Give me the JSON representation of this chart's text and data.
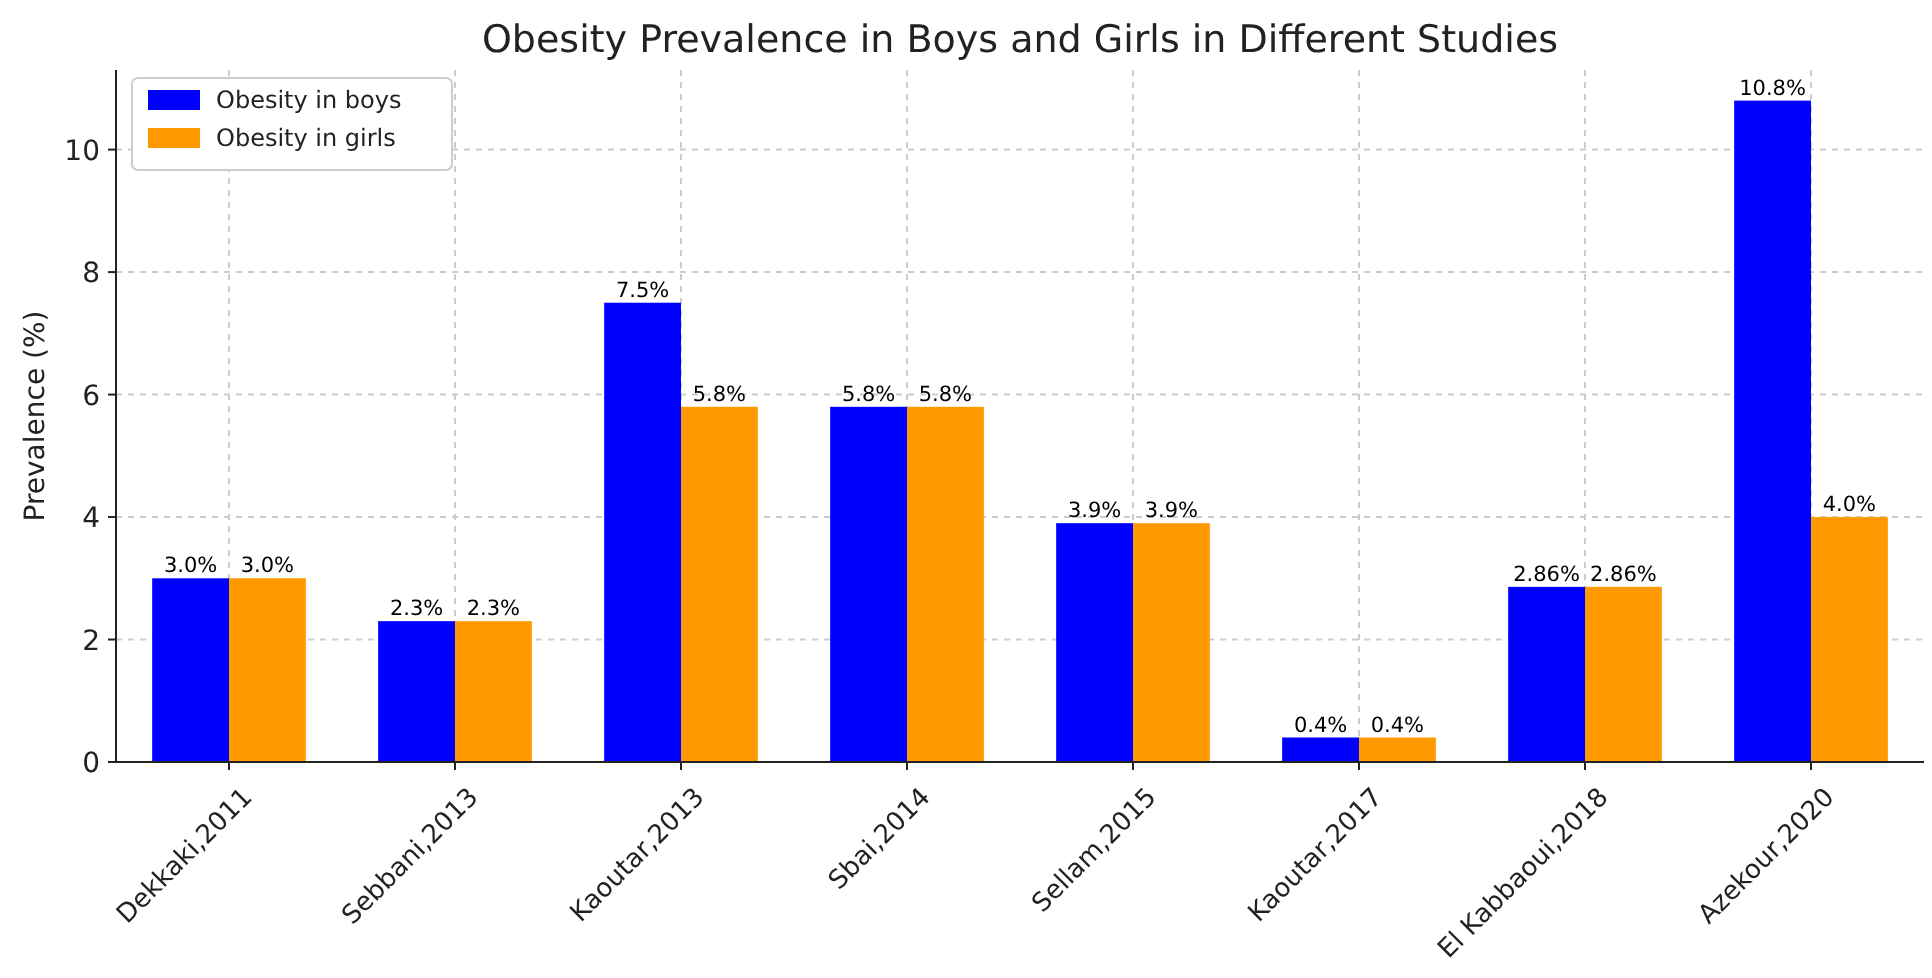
{
  "chart_data": {
    "type": "bar",
    "title": "Obesity Prevalence in Boys and Girls in Different Studies",
    "ylabel": "Prevalence (%)",
    "categories": [
      "Dekkaki,2011",
      "Sebbani,2013",
      "Kaoutar,2013",
      "Sbai,2014",
      "Sellam,2015",
      "Kaoutar,2017",
      "El Kabbaoui,2018",
      "Azekour,2020"
    ],
    "series": [
      {
        "name": "Obesity in boys",
        "color": "#0000ff",
        "values": [
          3.0,
          2.3,
          7.5,
          5.8,
          3.9,
          0.4,
          2.86,
          10.8
        ],
        "value_labels": [
          "3.0%",
          "2.3%",
          "7.5%",
          "5.8%",
          "3.9%",
          "0.4%",
          "2.86%",
          "10.8%"
        ]
      },
      {
        "name": "Obesity in girls",
        "color": "#ff9900",
        "values": [
          3.0,
          2.3,
          5.8,
          5.8,
          3.9,
          0.4,
          2.86,
          4.0
        ],
        "value_labels": [
          "3.0%",
          "2.3%",
          "5.8%",
          "5.8%",
          "3.9%",
          "0.4%",
          "2.86%",
          "4.0%"
        ]
      }
    ],
    "ylim": [
      0,
      11.3
    ],
    "yticks": [
      0,
      2,
      4,
      6,
      8,
      10
    ],
    "grid": true,
    "legend": "top left"
  }
}
